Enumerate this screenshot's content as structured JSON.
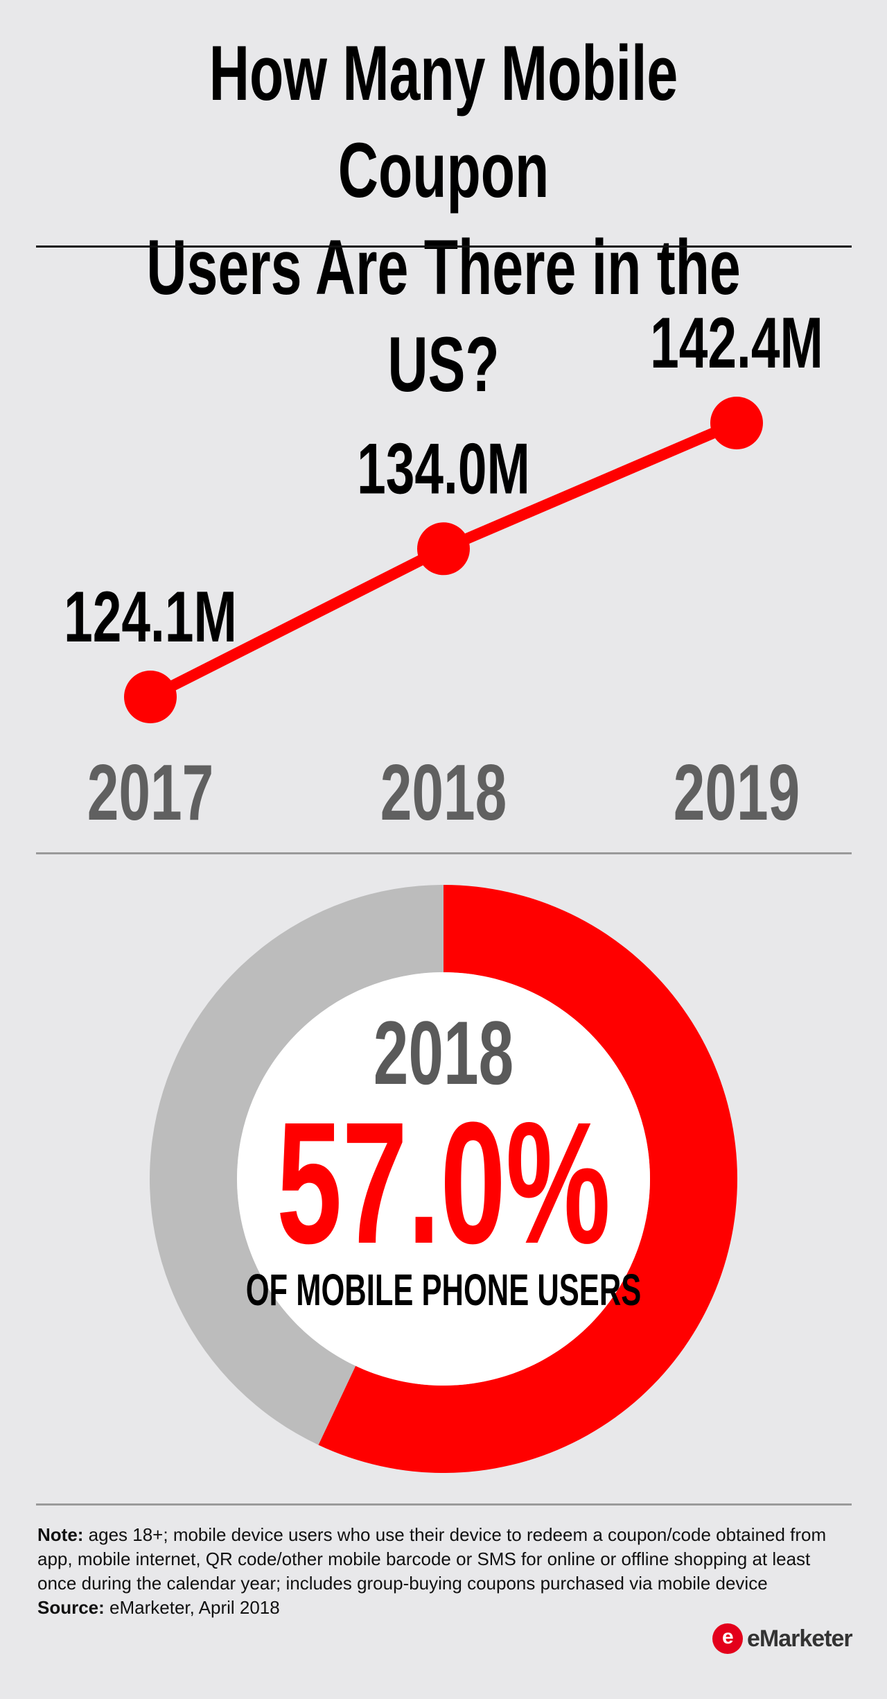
{
  "header": {
    "title_line1": "How Many Mobile Coupon",
    "title_line2": "Users Are There in the US?"
  },
  "chart_data": [
    {
      "type": "line",
      "categories": [
        "2017",
        "2018",
        "2019"
      ],
      "series": [
        {
          "values": [
            124.1,
            134.0,
            142.4
          ]
        }
      ],
      "data_labels": [
        "124.1M",
        "134.0M",
        "142.4M"
      ],
      "color": "#ff0000"
    },
    {
      "type": "pie",
      "year_label": "2018",
      "value_label": "57.0%",
      "caption": "OF MOBILE PHONE USERS",
      "slices": [
        {
          "value": 57.0,
          "color": "#ff0000"
        },
        {
          "value": 43.0,
          "color": "#bcbcbc"
        }
      ]
    }
  ],
  "footer": {
    "note_label": "Note:",
    "note_text": " ages 18+; mobile device users who use their device to redeem a coupon/code obtained from app, mobile internet, QR code/other mobile barcode or SMS for online or offline shopping at least once during the calendar year; includes group-buying coupons purchased via mobile device",
    "source_label": "Source:",
    "source_text": " eMarketer, April 2018",
    "logo_mark": "e",
    "logo_text": "eMarketer"
  }
}
